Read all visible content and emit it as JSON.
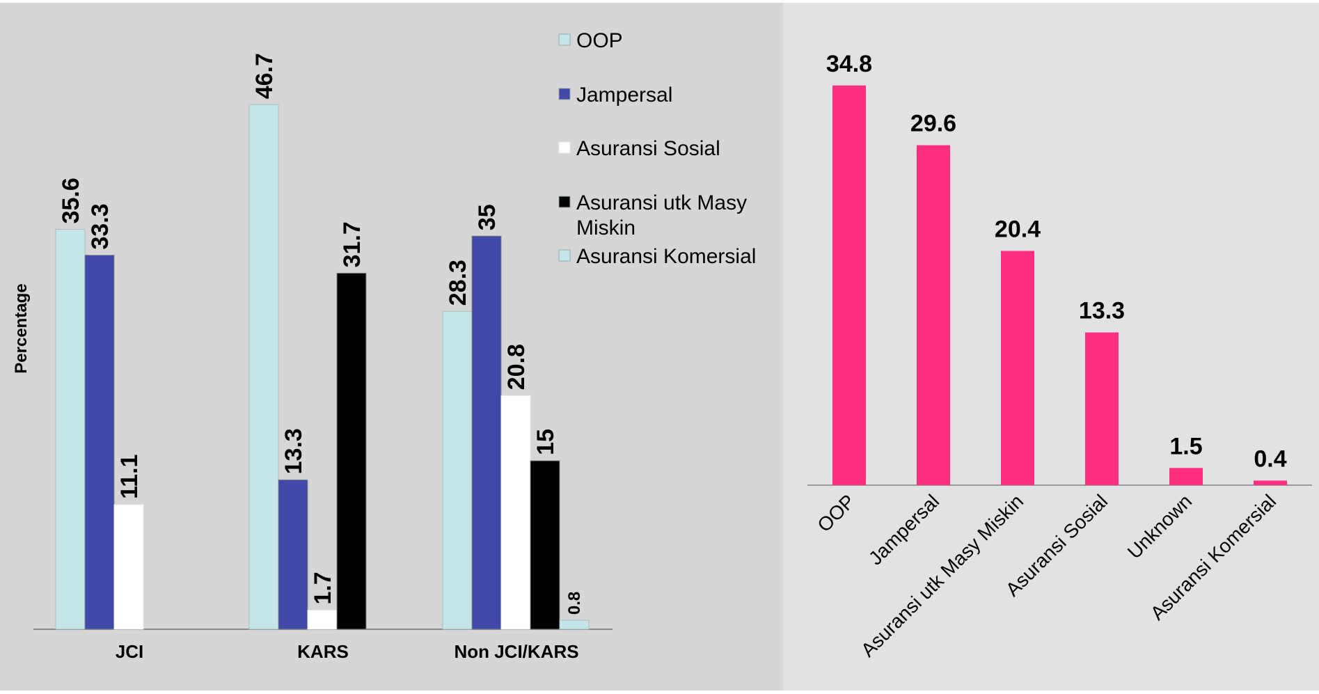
{
  "chart_data": [
    {
      "type": "bar",
      "ylabel": "Percentage",
      "categories": [
        "JCI",
        "KARS",
        "Non JCI/KARS"
      ],
      "ylim": [
        0,
        50
      ],
      "grid": false,
      "legend_position": "top-right",
      "series": [
        {
          "name": "OOP",
          "values": [
            35.6,
            46.7,
            28.3
          ],
          "labels": [
            "35.6",
            "46.7",
            "28.3"
          ],
          "color": "#c4e6e8"
        },
        {
          "name": "Jampersal",
          "values": [
            33.3,
            13.3,
            35
          ],
          "labels": [
            "33.3",
            "13.3",
            "35"
          ],
          "color": "#4148a8"
        },
        {
          "name": "Asuransi Sosial",
          "values": [
            11.1,
            1.7,
            20.8
          ],
          "labels": [
            "11.1",
            "1.7",
            "20.8"
          ],
          "color": "#ffffff"
        },
        {
          "name": "Asuransi utk Masy Miskin",
          "values": [
            null,
            31.7,
            15
          ],
          "labels": [
            "",
            "31.7",
            "15"
          ],
          "color": "#000000"
        },
        {
          "name": "Asuransi Komersial",
          "values": [
            null,
            null,
            0.8
          ],
          "labels": [
            "",
            "",
            "0.8"
          ],
          "color": "#c4e6e8"
        }
      ],
      "legend_lines": [
        [
          "OOP"
        ],
        [
          "Jampersal"
        ],
        [
          "Asuransi Sosial"
        ],
        [
          "Asuransi utk Masy",
          "Miskin"
        ],
        [
          "Asuransi Komersial"
        ]
      ],
      "background": "#d6d6d6"
    },
    {
      "type": "bar",
      "categories": [
        "OOP",
        "Jampersal",
        "Asuransi utk Masy Miskin",
        "Asuransi Sosial",
        "Unknown",
        "Asuransi Komersial"
      ],
      "values": [
        34.8,
        29.6,
        20.4,
        13.3,
        1.5,
        0.4
      ],
      "labels": [
        "34.8",
        "29.6",
        "20.4",
        "13.3",
        "1.5",
        "0.4"
      ],
      "ylim": [
        0,
        40
      ],
      "grid": false,
      "color": "#ff2e7e",
      "background": "#e2e2e2"
    }
  ]
}
